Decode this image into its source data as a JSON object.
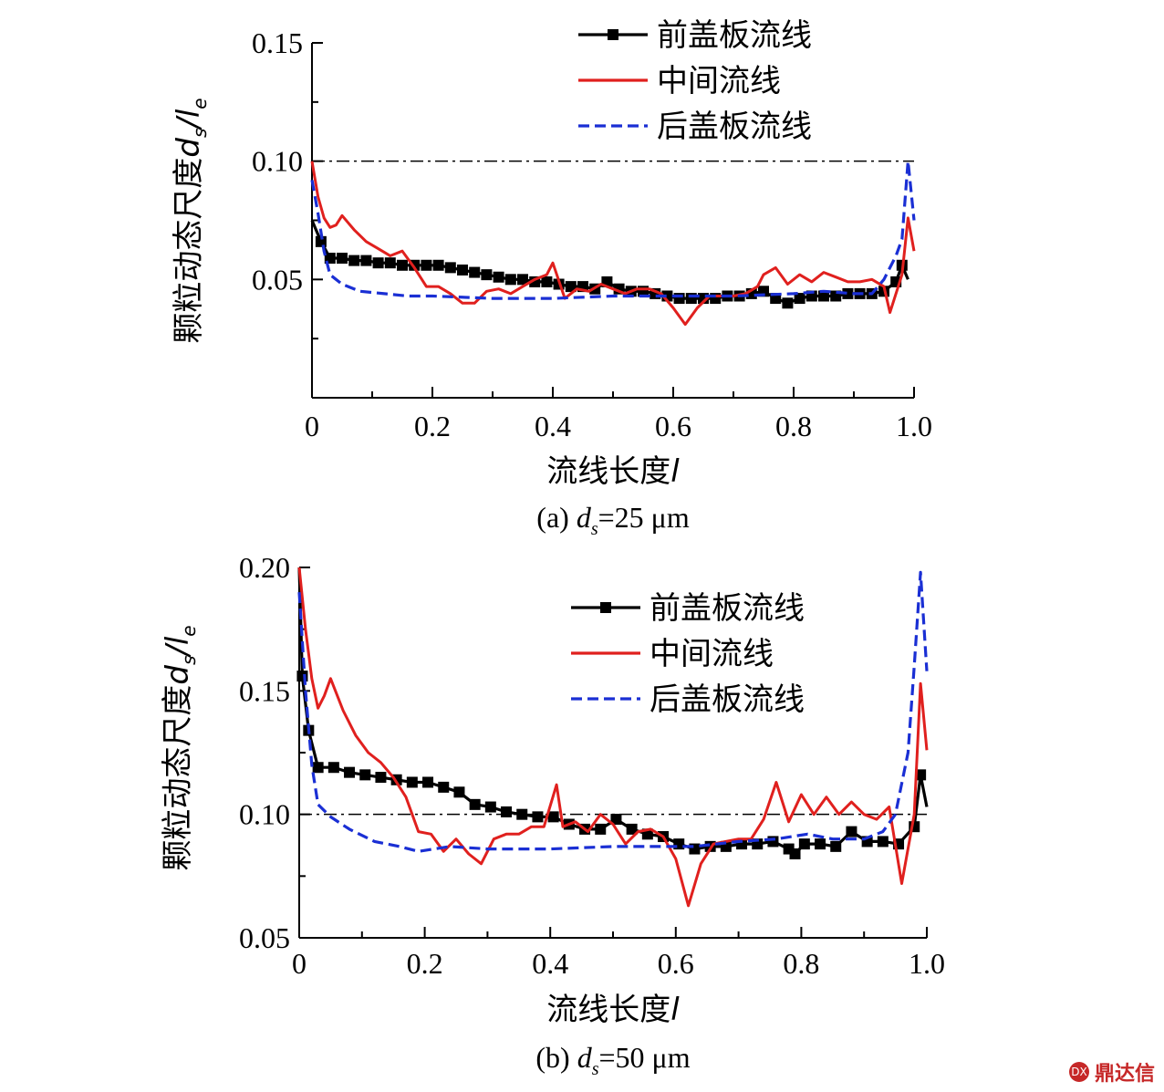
{
  "chart_data": [
    {
      "type": "line",
      "panel_label": "(a)",
      "caption": "(a) ds=25 μm",
      "caption_parts": {
        "prefix": "(a) ",
        "var": "d",
        "sub": "s",
        "suffix": "=25 μm"
      },
      "xlabel_parts": {
        "text": "流线长度",
        "var": "l"
      },
      "ylabel_parts": {
        "text": "颗粒动态尺度",
        "var1": "d",
        "sub1": "s",
        "slash": "/",
        "var2": "l",
        "sub2": "e"
      },
      "xlim": [
        0,
        1.0
      ],
      "ylim": [
        0,
        0.15
      ],
      "xticks": [
        "0",
        "0.2",
        "0.4",
        "0.6",
        "0.8",
        "1.0"
      ],
      "yticks": [
        "0.05",
        "0.10",
        "0.15"
      ],
      "yticks_values": [
        0.05,
        0.1,
        0.15
      ],
      "reference_line": {
        "y": 0.1,
        "style": "dash-dot"
      },
      "legend_position": "top-right",
      "series": [
        {
          "name": "前盖板流线",
          "color": "#000000",
          "style": "solid-square-markers",
          "x": [
            0.0,
            0.015,
            0.03,
            0.05,
            0.07,
            0.09,
            0.11,
            0.13,
            0.15,
            0.17,
            0.19,
            0.21,
            0.23,
            0.25,
            0.27,
            0.29,
            0.31,
            0.33,
            0.35,
            0.37,
            0.39,
            0.41,
            0.43,
            0.45,
            0.47,
            0.49,
            0.51,
            0.53,
            0.55,
            0.57,
            0.59,
            0.61,
            0.63,
            0.65,
            0.67,
            0.69,
            0.71,
            0.73,
            0.75,
            0.77,
            0.79,
            0.81,
            0.83,
            0.85,
            0.87,
            0.89,
            0.91,
            0.93,
            0.95,
            0.97,
            0.98,
            0.99
          ],
          "y": [
            0.075,
            0.066,
            0.059,
            0.059,
            0.058,
            0.058,
            0.057,
            0.057,
            0.056,
            0.056,
            0.056,
            0.056,
            0.055,
            0.054,
            0.053,
            0.052,
            0.051,
            0.05,
            0.05,
            0.049,
            0.049,
            0.048,
            0.047,
            0.047,
            0.046,
            0.049,
            0.046,
            0.045,
            0.045,
            0.044,
            0.043,
            0.042,
            0.042,
            0.042,
            0.042,
            0.043,
            0.043,
            0.044,
            0.045,
            0.042,
            0.04,
            0.042,
            0.043,
            0.043,
            0.043,
            0.044,
            0.044,
            0.044,
            0.045,
            0.049,
            0.056,
            0.05
          ]
        },
        {
          "name": "中间流线",
          "color": "#e0201e",
          "style": "solid",
          "x": [
            0.0,
            0.01,
            0.02,
            0.03,
            0.04,
            0.05,
            0.07,
            0.09,
            0.11,
            0.13,
            0.15,
            0.17,
            0.19,
            0.21,
            0.23,
            0.25,
            0.27,
            0.29,
            0.31,
            0.33,
            0.35,
            0.37,
            0.39,
            0.4,
            0.42,
            0.44,
            0.46,
            0.48,
            0.5,
            0.52,
            0.54,
            0.56,
            0.58,
            0.6,
            0.62,
            0.64,
            0.66,
            0.68,
            0.7,
            0.72,
            0.74,
            0.75,
            0.77,
            0.79,
            0.81,
            0.83,
            0.85,
            0.87,
            0.89,
            0.91,
            0.93,
            0.95,
            0.96,
            0.98,
            0.99,
            1.0
          ],
          "y": [
            0.1,
            0.085,
            0.076,
            0.072,
            0.073,
            0.077,
            0.071,
            0.066,
            0.063,
            0.06,
            0.062,
            0.055,
            0.047,
            0.047,
            0.044,
            0.04,
            0.04,
            0.045,
            0.046,
            0.044,
            0.047,
            0.05,
            0.052,
            0.057,
            0.042,
            0.046,
            0.045,
            0.048,
            0.046,
            0.044,
            0.046,
            0.046,
            0.044,
            0.038,
            0.031,
            0.038,
            0.043,
            0.043,
            0.043,
            0.044,
            0.047,
            0.052,
            0.055,
            0.048,
            0.052,
            0.049,
            0.053,
            0.051,
            0.049,
            0.049,
            0.05,
            0.047,
            0.036,
            0.052,
            0.076,
            0.062
          ]
        },
        {
          "name": "后盖板流线",
          "color": "#1a2fd4",
          "style": "dashed",
          "x": [
            0.0,
            0.01,
            0.02,
            0.03,
            0.05,
            0.08,
            0.12,
            0.16,
            0.2,
            0.3,
            0.4,
            0.5,
            0.6,
            0.7,
            0.8,
            0.85,
            0.9,
            0.93,
            0.95,
            0.97,
            0.98,
            0.99,
            1.0
          ],
          "y": [
            0.092,
            0.078,
            0.062,
            0.052,
            0.048,
            0.045,
            0.044,
            0.043,
            0.043,
            0.042,
            0.042,
            0.043,
            0.043,
            0.043,
            0.044,
            0.045,
            0.044,
            0.044,
            0.05,
            0.06,
            0.067,
            0.1,
            0.075
          ]
        }
      ]
    },
    {
      "type": "line",
      "panel_label": "(b)",
      "caption": "(b) ds=50 μm",
      "caption_parts": {
        "prefix": "(b) ",
        "var": "d",
        "sub": "s",
        "suffix": "=50 μm"
      },
      "xlabel_parts": {
        "text": "流线长度",
        "var": "l"
      },
      "ylabel_parts": {
        "text": "颗粒动态尺度",
        "var1": "d",
        "sub1": "s",
        "slash": "/",
        "var2": "l",
        "sub2": "e"
      },
      "xlim": [
        0,
        1.0
      ],
      "ylim": [
        0.05,
        0.2
      ],
      "xticks": [
        "0",
        "0.2",
        "0.4",
        "0.6",
        "0.8",
        "1.0"
      ],
      "yticks": [
        "0.05",
        "0.10",
        "0.15",
        "0.20"
      ],
      "yticks_values": [
        0.05,
        0.1,
        0.15,
        0.2
      ],
      "reference_line": {
        "y": 0.1,
        "style": "dash-dot"
      },
      "legend_position": "top-right",
      "series": [
        {
          "name": "前盖板流线",
          "color": "#000000",
          "style": "solid-square-markers",
          "x": [
            0.0,
            0.005,
            0.015,
            0.03,
            0.055,
            0.08,
            0.105,
            0.13,
            0.155,
            0.18,
            0.205,
            0.23,
            0.255,
            0.28,
            0.305,
            0.33,
            0.355,
            0.38,
            0.405,
            0.43,
            0.455,
            0.48,
            0.505,
            0.53,
            0.555,
            0.58,
            0.605,
            0.63,
            0.655,
            0.68,
            0.705,
            0.73,
            0.755,
            0.78,
            0.79,
            0.805,
            0.83,
            0.855,
            0.88,
            0.905,
            0.93,
            0.955,
            0.98,
            0.99,
            1.0
          ],
          "y": [
            0.2,
            0.156,
            0.134,
            0.119,
            0.119,
            0.117,
            0.116,
            0.115,
            0.114,
            0.113,
            0.113,
            0.111,
            0.109,
            0.104,
            0.103,
            0.101,
            0.1,
            0.099,
            0.099,
            0.096,
            0.094,
            0.094,
            0.098,
            0.094,
            0.092,
            0.091,
            0.088,
            0.086,
            0.087,
            0.087,
            0.088,
            0.088,
            0.089,
            0.086,
            0.084,
            0.088,
            0.088,
            0.087,
            0.093,
            0.089,
            0.089,
            0.088,
            0.095,
            0.116,
            0.103
          ]
        },
        {
          "name": "中间流线",
          "color": "#e0201e",
          "style": "solid",
          "x": [
            0.0,
            0.01,
            0.02,
            0.03,
            0.04,
            0.05,
            0.07,
            0.09,
            0.11,
            0.13,
            0.15,
            0.17,
            0.19,
            0.21,
            0.23,
            0.25,
            0.27,
            0.29,
            0.31,
            0.33,
            0.35,
            0.37,
            0.39,
            0.41,
            0.42,
            0.44,
            0.46,
            0.48,
            0.5,
            0.52,
            0.54,
            0.56,
            0.58,
            0.6,
            0.62,
            0.64,
            0.66,
            0.68,
            0.7,
            0.72,
            0.74,
            0.76,
            0.78,
            0.8,
            0.82,
            0.84,
            0.86,
            0.88,
            0.9,
            0.92,
            0.94,
            0.96,
            0.98,
            0.99,
            1.0
          ],
          "y": [
            0.2,
            0.175,
            0.155,
            0.143,
            0.148,
            0.155,
            0.142,
            0.132,
            0.125,
            0.121,
            0.115,
            0.107,
            0.093,
            0.092,
            0.085,
            0.09,
            0.084,
            0.08,
            0.09,
            0.092,
            0.092,
            0.095,
            0.095,
            0.112,
            0.095,
            0.097,
            0.093,
            0.1,
            0.096,
            0.088,
            0.093,
            0.094,
            0.091,
            0.082,
            0.063,
            0.08,
            0.088,
            0.089,
            0.09,
            0.09,
            0.098,
            0.113,
            0.097,
            0.108,
            0.1,
            0.107,
            0.1,
            0.105,
            0.1,
            0.098,
            0.103,
            0.072,
            0.1,
            0.153,
            0.126
          ]
        },
        {
          "name": "后盖板流线",
          "color": "#1a2fd4",
          "style": "dashed",
          "x": [
            0.0,
            0.01,
            0.02,
            0.03,
            0.05,
            0.08,
            0.12,
            0.16,
            0.19,
            0.24,
            0.3,
            0.4,
            0.5,
            0.58,
            0.63,
            0.7,
            0.76,
            0.81,
            0.85,
            0.9,
            0.93,
            0.95,
            0.97,
            0.98,
            0.99,
            1.0
          ],
          "y": [
            0.19,
            0.15,
            0.12,
            0.104,
            0.099,
            0.094,
            0.089,
            0.087,
            0.085,
            0.087,
            0.086,
            0.086,
            0.087,
            0.087,
            0.087,
            0.089,
            0.09,
            0.092,
            0.09,
            0.09,
            0.093,
            0.1,
            0.125,
            0.16,
            0.198,
            0.158
          ]
        }
      ]
    }
  ],
  "watermark": {
    "text": "鼎达信",
    "badge": "DX"
  }
}
